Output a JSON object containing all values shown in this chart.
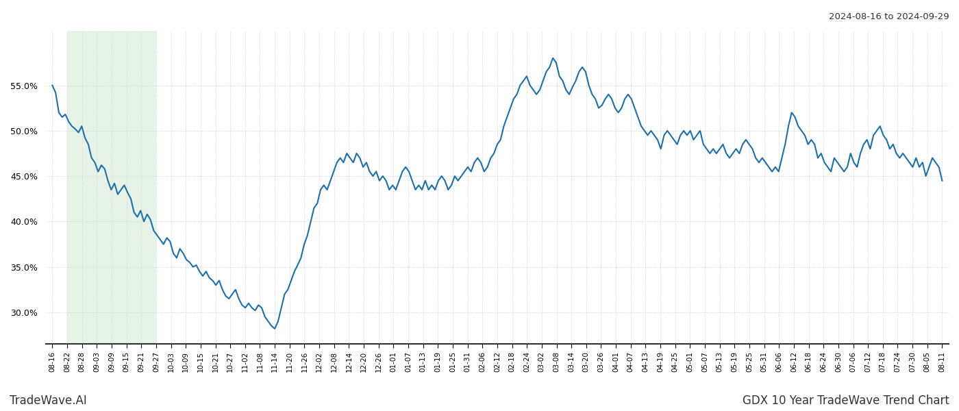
{
  "title_top_right": "2024-08-16 to 2024-09-29",
  "bottom_left": "TradeWave.AI",
  "bottom_right": "GDX 10 Year TradeWave Trend Chart",
  "line_color": "#1a6faf",
  "line_width": 1.5,
  "shade_color": "#c8e6c9",
  "shade_alpha": 0.45,
  "background_color": "#ffffff",
  "grid_color": "#bbbbbb",
  "ylim": [
    26.5,
    61
  ],
  "yticks": [
    30.0,
    35.0,
    40.0,
    45.0,
    50.0,
    55.0
  ],
  "x_labels": [
    "08-16",
    "08-22",
    "08-28",
    "09-03",
    "09-09",
    "09-15",
    "09-21",
    "09-27",
    "10-03",
    "10-09",
    "10-15",
    "10-21",
    "10-27",
    "11-02",
    "11-08",
    "11-14",
    "11-20",
    "11-26",
    "12-02",
    "12-08",
    "12-14",
    "12-20",
    "12-26",
    "01-01",
    "01-07",
    "01-13",
    "01-19",
    "01-25",
    "01-31",
    "02-06",
    "02-12",
    "02-18",
    "02-24",
    "03-02",
    "03-08",
    "03-14",
    "03-20",
    "03-26",
    "04-01",
    "04-07",
    "04-13",
    "04-19",
    "04-25",
    "05-01",
    "05-07",
    "05-13",
    "05-19",
    "05-25",
    "05-31",
    "06-06",
    "06-12",
    "06-18",
    "06-24",
    "06-30",
    "07-06",
    "07-12",
    "07-18",
    "07-24",
    "07-30",
    "08-05",
    "08-11"
  ],
  "shade_start_label": "08-22",
  "shade_end_label": "09-27",
  "y_values": [
    55.0,
    54.2,
    52.0,
    51.5,
    51.8,
    51.0,
    50.5,
    50.2,
    49.8,
    50.5,
    49.2,
    48.5,
    47.0,
    46.5,
    45.5,
    46.2,
    45.8,
    44.5,
    43.5,
    44.2,
    43.0,
    43.5,
    44.0,
    43.2,
    42.5,
    41.0,
    40.5,
    41.2,
    40.0,
    40.8,
    40.2,
    39.0,
    38.5,
    38.0,
    37.5,
    38.2,
    37.8,
    36.5,
    36.0,
    37.0,
    36.5,
    35.8,
    35.5,
    35.0,
    35.2,
    34.5,
    34.0,
    34.5,
    33.8,
    33.5,
    33.0,
    33.5,
    32.5,
    31.8,
    31.5,
    32.0,
    32.5,
    31.5,
    30.8,
    30.5,
    31.0,
    30.5,
    30.2,
    30.8,
    30.5,
    29.5,
    29.0,
    28.5,
    28.2,
    29.0,
    30.5,
    32.0,
    32.5,
    33.5,
    34.5,
    35.2,
    36.0,
    37.5,
    38.5,
    40.0,
    41.5,
    42.0,
    43.5,
    44.0,
    43.5,
    44.5,
    45.5,
    46.5,
    47.0,
    46.5,
    47.5,
    47.0,
    46.5,
    47.5,
    47.0,
    46.0,
    46.5,
    45.5,
    45.0,
    45.5,
    44.5,
    45.0,
    44.5,
    43.5,
    44.0,
    43.5,
    44.5,
    45.5,
    46.0,
    45.5,
    44.5,
    43.5,
    44.0,
    43.5,
    44.5,
    43.5,
    44.0,
    43.5,
    44.5,
    45.0,
    44.5,
    43.5,
    44.0,
    45.0,
    44.5,
    45.0,
    45.5,
    46.0,
    45.5,
    46.5,
    47.0,
    46.5,
    45.5,
    46.0,
    47.0,
    47.5,
    48.5,
    49.0,
    50.5,
    51.5,
    52.5,
    53.5,
    54.0,
    55.0,
    55.5,
    56.0,
    55.0,
    54.5,
    54.0,
    54.5,
    55.5,
    56.5,
    57.0,
    58.0,
    57.5,
    56.0,
    55.5,
    54.5,
    54.0,
    54.8,
    55.5,
    56.5,
    57.0,
    56.5,
    55.0,
    54.0,
    53.5,
    52.5,
    52.8,
    53.5,
    54.0,
    53.5,
    52.5,
    52.0,
    52.5,
    53.5,
    54.0,
    53.5,
    52.5,
    51.5,
    50.5,
    50.0,
    49.5,
    50.0,
    49.5,
    49.0,
    48.0,
    49.5,
    50.0,
    49.5,
    49.0,
    48.5,
    49.5,
    50.0,
    49.5,
    50.0,
    49.0,
    49.5,
    50.0,
    48.5,
    48.0,
    47.5,
    48.0,
    47.5,
    48.0,
    48.5,
    47.5,
    47.0,
    47.5,
    48.0,
    47.5,
    48.5,
    49.0,
    48.5,
    48.0,
    47.0,
    46.5,
    47.0,
    46.5,
    46.0,
    45.5,
    46.0,
    45.5,
    47.0,
    48.5,
    50.5,
    52.0,
    51.5,
    50.5,
    50.0,
    49.5,
    48.5,
    49.0,
    48.5,
    47.0,
    47.5,
    46.5,
    46.0,
    45.5,
    47.0,
    46.5,
    46.0,
    45.5,
    46.0,
    47.5,
    46.5,
    46.0,
    47.5,
    48.5,
    49.0,
    48.0,
    49.5,
    50.0,
    50.5,
    49.5,
    49.0,
    48.0,
    48.5,
    47.5,
    47.0,
    47.5,
    47.0,
    46.5,
    46.0,
    47.0,
    46.0,
    46.5,
    45.0,
    46.0,
    47.0,
    46.5,
    46.0,
    44.5
  ]
}
